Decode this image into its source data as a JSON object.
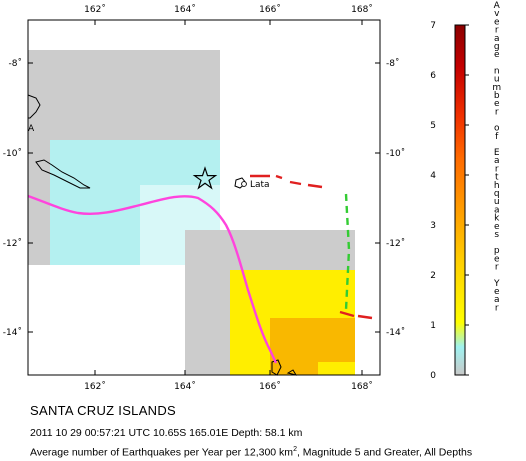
{
  "map": {
    "lon_ticks": [
      "162˚",
      "164˚",
      "166˚",
      "168˚"
    ],
    "lat_ticks": [
      "-8˚",
      "-10˚",
      "-12˚",
      "-14˚"
    ],
    "place_label": "Lata",
    "edge_label": "A",
    "colors": {
      "gray": "#cccccc",
      "cyan": "#b4f0f0",
      "light_cyan": "#d8f8f8",
      "yellow": "#ffee00",
      "orange_light": "#f9b800",
      "orange": "#f39a13",
      "orange_dark": "#ee7a1c",
      "plate_boundary": "#e02020",
      "trench": "#33cc33",
      "fault_track": "#ff44dd",
      "coast": "#000000"
    },
    "epicenter_icon": "star-icon"
  },
  "colorbar": {
    "ticks": [
      "0",
      "1",
      "2",
      "3",
      "4",
      "5",
      "6",
      "7"
    ],
    "title_words": [
      "Average",
      "number",
      "of",
      "Earthquakes",
      "per",
      "Year"
    ],
    "stops": [
      "#c8c8c8",
      "#9ff2f0",
      "#ffff00",
      "#ffd000",
      "#ff9a00",
      "#ff6a00",
      "#f03000",
      "#c40000",
      "#8b0000"
    ]
  },
  "caption": {
    "title": "SANTA CRUZ ISLANDS",
    "event": "2011 10 29 00:57:21 UTC 10.65S 165.01E Depth: 58.1 km",
    "average_prefix": "Average number of Earthquakes per Year per 12,300 km",
    "average_sup": "2",
    "average_suffix": ", Magnitude 5 and Greater, All Depths"
  }
}
